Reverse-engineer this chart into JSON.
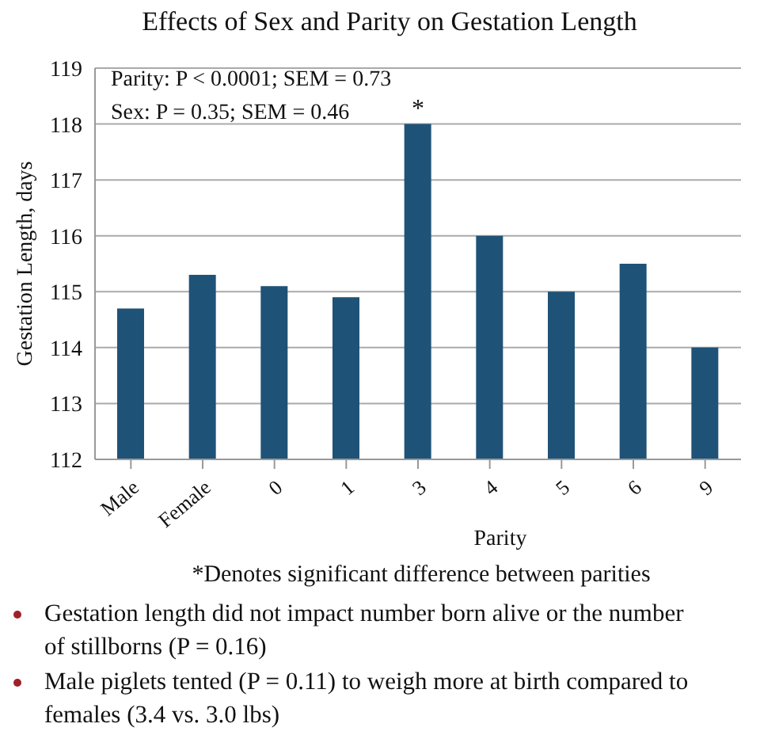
{
  "chart_data": {
    "type": "bar",
    "title": "Effects of Sex and Parity on Gestation Length",
    "xlabel": "Parity",
    "ylabel": "Gestation Length, days",
    "categories": [
      "Male",
      "Female",
      "0",
      "1",
      "3",
      "4",
      "5",
      "6",
      "9"
    ],
    "values": [
      114.7,
      115.3,
      115.1,
      114.9,
      118,
      116,
      115,
      115.5,
      114
    ],
    "color": "#1f5277",
    "ylim": [
      112,
      119
    ],
    "yticks": [
      112,
      113,
      114,
      115,
      116,
      117,
      118,
      119
    ],
    "grid": "y",
    "annotations": [
      "Parity: P < 0.0001; SEM = 0.73",
      "Sex: P = 0.35; SEM = 0.46",
      {
        "text": "*",
        "x": "3",
        "y": 118
      },
      "*Denotes significant difference between parities",
      "Gestation length did not impact number born alive or the number of stillborns (P = 0.16)",
      "Male piglets tented (P = 0.11) to weigh more at birth compared to females (3.4 vs. 3.0 lbs)"
    ]
  }
}
